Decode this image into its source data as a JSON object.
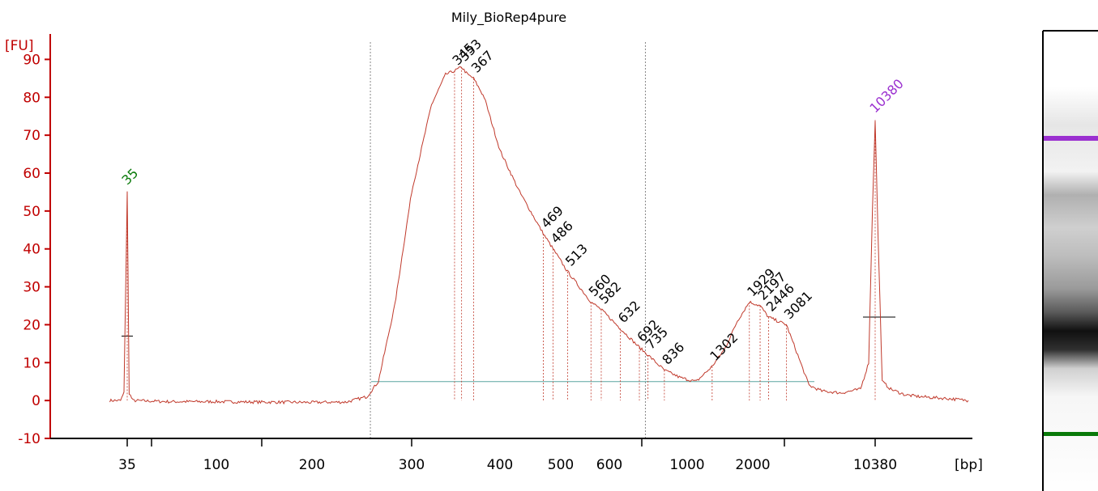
{
  "chart_data": {
    "type": "line",
    "title": "Mily_BioRep4pure",
    "ylabel": "[FU]",
    "xlabel": "[bp]",
    "ylim": [
      -10,
      95
    ],
    "yticks": [
      "90",
      "80",
      "70",
      "60",
      "50",
      "40",
      "30",
      "20",
      "10",
      "0",
      "-10"
    ],
    "xticks": [
      "35",
      "100",
      "200",
      "300",
      "400",
      "500",
      "600",
      "1000",
      "2000",
      "10380"
    ],
    "grid": false,
    "colors": {
      "trace": "#c0392b",
      "axis": "#c00000",
      "lower_marker": "#0a7a0a",
      "upper_marker": "#9b30d0",
      "baseline": "#5aa6a0",
      "region": "#888888"
    },
    "series": [
      {
        "values_note": "",
        "points": [
          [
            30,
            0
          ],
          [
            33,
            0
          ],
          [
            34,
            2
          ],
          [
            35,
            55
          ],
          [
            36,
            2
          ],
          [
            38,
            0
          ],
          [
            60,
            -0.3
          ],
          [
            100,
            -0.3
          ],
          [
            150,
            -0.4
          ],
          [
            200,
            -0.5
          ],
          [
            230,
            -0.4
          ],
          [
            250,
            1
          ],
          [
            262,
            5
          ],
          [
            280,
            25
          ],
          [
            300,
            55
          ],
          [
            320,
            78
          ],
          [
            335,
            86
          ],
          [
            345,
            87
          ],
          [
            353,
            88
          ],
          [
            360,
            86
          ],
          [
            367,
            85
          ],
          [
            380,
            80
          ],
          [
            400,
            66
          ],
          [
            430,
            55
          ],
          [
            469,
            44
          ],
          [
            486,
            40
          ],
          [
            513,
            34
          ],
          [
            560,
            26
          ],
          [
            582,
            24
          ],
          [
            632,
            19
          ],
          [
            692,
            14
          ],
          [
            735,
            12
          ],
          [
            836,
            8
          ],
          [
            950,
            6
          ],
          [
            1100,
            5
          ],
          [
            1302,
            9
          ],
          [
            1500,
            14
          ],
          [
            1700,
            21
          ],
          [
            1929,
            26
          ],
          [
            2197,
            25
          ],
          [
            2446,
            22
          ],
          [
            3081,
            20
          ],
          [
            3600,
            12
          ],
          [
            4200,
            4
          ],
          [
            5000,
            2.5
          ],
          [
            6500,
            2
          ],
          [
            8500,
            3
          ],
          [
            9500,
            10
          ],
          [
            10000,
            50
          ],
          [
            10380,
            74
          ],
          [
            10800,
            45
          ],
          [
            11500,
            5
          ],
          [
            13000,
            3
          ],
          [
            16000,
            1.5
          ],
          [
            20000,
            1
          ],
          [
            30000,
            0.5
          ],
          [
            45000,
            0
          ]
        ]
      }
    ],
    "markers": [
      {
        "label": "35",
        "bp": 35,
        "fu": 55,
        "role": "lower"
      },
      {
        "label": "10380",
        "bp": 10380,
        "fu": 74,
        "role": "upper"
      }
    ],
    "peaks": [
      {
        "label": "345",
        "bp": 345,
        "fu": 87
      },
      {
        "label": "353",
        "bp": 353,
        "fu": 88
      },
      {
        "label": "367",
        "bp": 367,
        "fu": 85
      },
      {
        "label": "469",
        "bp": 469,
        "fu": 44
      },
      {
        "label": "486",
        "bp": 486,
        "fu": 40
      },
      {
        "label": "513",
        "bp": 513,
        "fu": 34
      },
      {
        "label": "560",
        "bp": 560,
        "fu": 26
      },
      {
        "label": "582",
        "bp": 582,
        "fu": 24
      },
      {
        "label": "632",
        "bp": 632,
        "fu": 19
      },
      {
        "label": "692",
        "bp": 692,
        "fu": 14
      },
      {
        "label": "735",
        "bp": 735,
        "fu": 12
      },
      {
        "label": "836",
        "bp": 836,
        "fu": 8
      },
      {
        "label": "1302",
        "bp": 1302,
        "fu": 9
      },
      {
        "label": "1929",
        "bp": 1929,
        "fu": 26
      },
      {
        "label": "2197",
        "bp": 2197,
        "fu": 25
      },
      {
        "label": "2446",
        "bp": 2446,
        "fu": 22
      },
      {
        "label": "3081",
        "bp": 3081,
        "fu": 20
      }
    ],
    "smear_range_bp": [
      280,
      900
    ],
    "gel_lane": {
      "upper_marker_color": "#9b30d0",
      "lower_marker_color": "#0a7a0a"
    }
  }
}
